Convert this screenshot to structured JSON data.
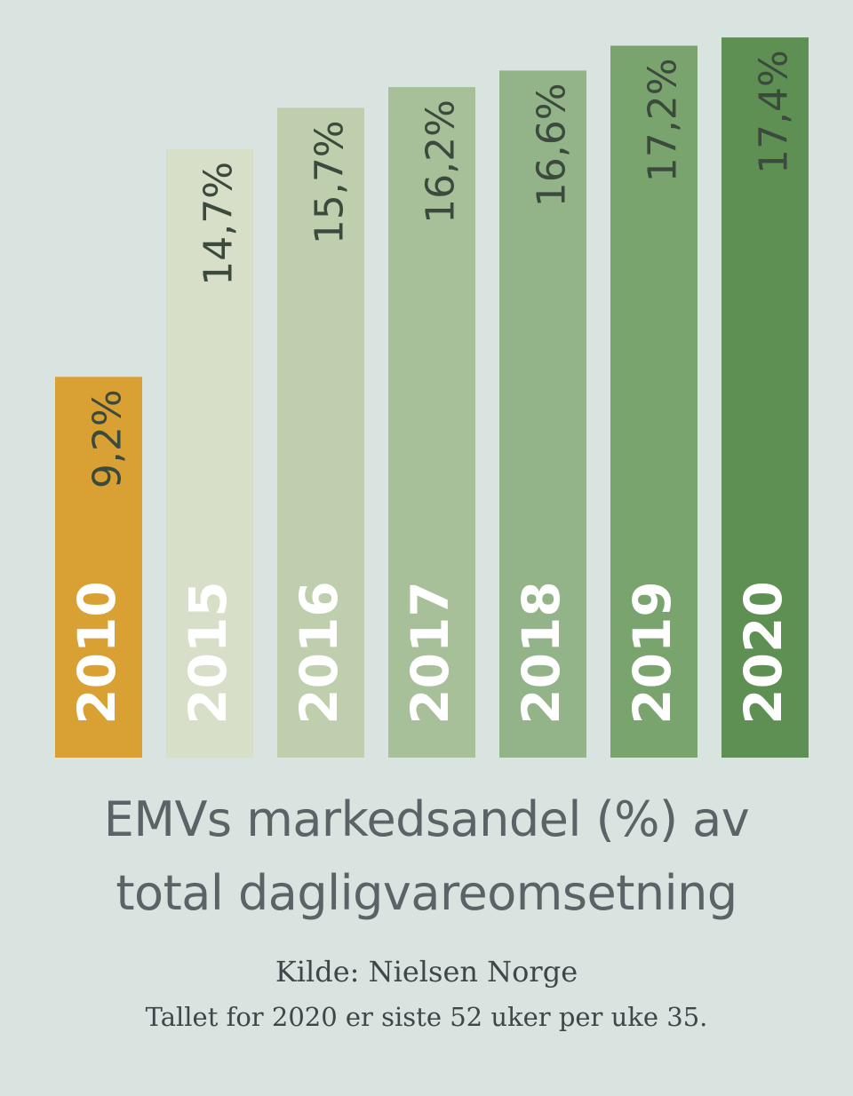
{
  "chart_data": {
    "type": "bar",
    "categories": [
      "2010",
      "2015",
      "2016",
      "2017",
      "2018",
      "2019",
      "2020"
    ],
    "values": [
      9.2,
      14.7,
      15.7,
      16.2,
      16.6,
      17.2,
      17.4
    ],
    "value_labels": [
      "9,2%",
      "14,7%",
      "15,7%",
      "16,2%",
      "16,6%",
      "17,2%",
      "17,4%"
    ],
    "title": "EMVs markedsandel (%) av total dagligvareomsetning",
    "xlabel": "",
    "ylabel": "",
    "grid": false,
    "colors": [
      "#d9a034",
      "#d7dfc8",
      "#bfcfae",
      "#a7c09a",
      "#93b489",
      "#7aa46e",
      "#5e9054"
    ]
  },
  "title": {
    "line1": "EMVs markedsandel (%) av",
    "line2": "total dagligvareomsetning"
  },
  "source": {
    "line1": "Kilde: Nielsen Norge",
    "line2": "Tallet for 2020 er siste 52 uker per uke 35."
  },
  "colors": {
    "background": "#d9e3df",
    "year_text": "#ffffff",
    "value_text": "#3c4a3d"
  }
}
